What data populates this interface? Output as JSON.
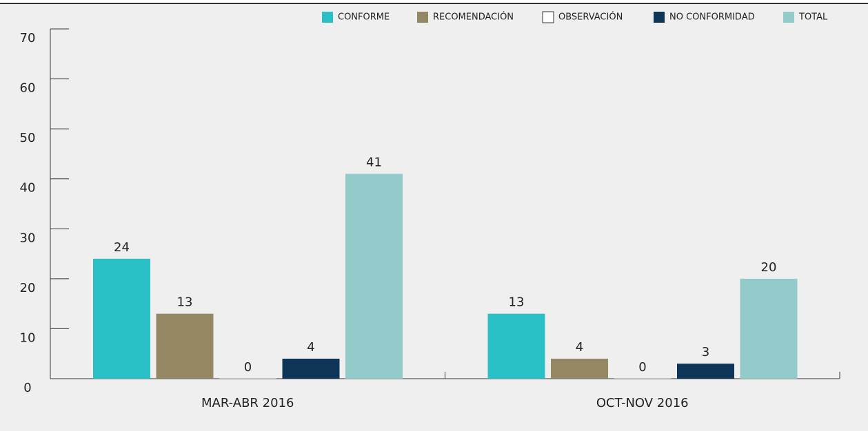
{
  "chart_data": {
    "type": "bar",
    "categories": [
      "MAR-ABR 2016",
      "OCT-NOV 2016"
    ],
    "series": [
      {
        "name": "CONFORME",
        "color": "#2bbfc6",
        "values": [
          24,
          13
        ]
      },
      {
        "name": "RECOMENDACIÓN",
        "color": "#938863",
        "values": [
          13,
          4
        ]
      },
      {
        "name": "OBSERVACIÓN",
        "color": "#ffffff",
        "values": [
          0,
          0
        ]
      },
      {
        "name": "NO CONFORMIDAD",
        "color": "#0e3457",
        "values": [
          4,
          3
        ]
      },
      {
        "name": "TOTAL",
        "color": "#93cbca",
        "values": [
          41,
          20
        ]
      }
    ],
    "ylim": [
      0,
      70
    ],
    "yticks": [
      0,
      10,
      20,
      30,
      40,
      50,
      60,
      70
    ],
    "legend": "top-right"
  }
}
